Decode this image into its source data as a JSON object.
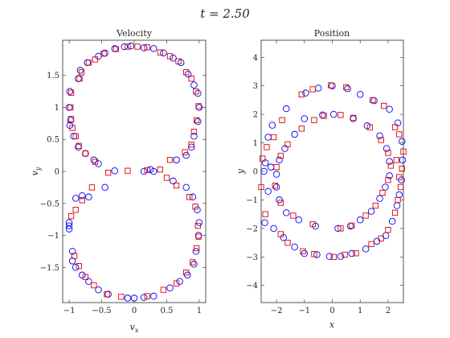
{
  "figure": {
    "title": "t = 2.50",
    "series_colors": {
      "blue": "#0000ff",
      "red": "#dd0000"
    },
    "markers": {
      "blue": "circle",
      "red": "square"
    }
  },
  "chart_data": [
    {
      "type": "scatter",
      "title": "Velocity",
      "xlabel": "v_x",
      "ylabel": "v_y",
      "xlim": [
        -1.1,
        1.1
      ],
      "ylim": [
        -2.05,
        2.05
      ],
      "xticks": [
        -1,
        -0.5,
        0,
        0.5,
        1
      ],
      "yticks": [
        -1.5,
        -1,
        -0.5,
        0,
        0.5,
        1,
        1.5
      ],
      "grid": false,
      "series": [
        {
          "color": "blue",
          "marker": "circle",
          "points": [
            [
              -1.0,
              1.0
            ],
            [
              -0.98,
              0.8
            ],
            [
              -0.99,
              1.25
            ],
            [
              -0.86,
              1.45
            ],
            [
              -0.83,
              1.58
            ],
            [
              -0.72,
              1.7
            ],
            [
              -0.55,
              1.8
            ],
            [
              -0.45,
              1.85
            ],
            [
              -0.3,
              1.92
            ],
            [
              -0.15,
              1.95
            ],
            [
              -0.05,
              1.96
            ],
            [
              0.15,
              1.93
            ],
            [
              0.3,
              1.92
            ],
            [
              0.45,
              1.85
            ],
            [
              0.6,
              1.77
            ],
            [
              0.72,
              1.7
            ],
            [
              0.83,
              1.52
            ],
            [
              0.92,
              1.35
            ],
            [
              0.98,
              1.22
            ],
            [
              1.0,
              1.0
            ],
            [
              0.98,
              0.78
            ],
            [
              0.92,
              0.55
            ],
            [
              0.88,
              0.38
            ],
            [
              0.8,
              0.25
            ],
            [
              0.65,
              0.18
            ],
            [
              0.3,
              0.0
            ],
            [
              0.25,
              0.03
            ],
            [
              0.15,
              0.0
            ],
            [
              -0.3,
              0.01
            ],
            [
              -0.55,
              0.12
            ],
            [
              -0.62,
              0.18
            ],
            [
              -0.75,
              0.28
            ],
            [
              -0.86,
              0.38
            ],
            [
              -0.93,
              0.55
            ],
            [
              -0.99,
              0.72
            ],
            [
              -1.0,
              -0.8
            ],
            [
              -1.0,
              -0.85
            ],
            [
              -1.0,
              -0.9
            ],
            [
              -0.95,
              -1.25
            ],
            [
              -0.95,
              -1.4
            ],
            [
              -0.9,
              -1.5
            ],
            [
              -0.8,
              -1.62
            ],
            [
              -0.7,
              -1.72
            ],
            [
              -0.55,
              -1.85
            ],
            [
              -0.4,
              -1.92
            ],
            [
              -0.1,
              -1.98
            ],
            [
              0.0,
              -1.98
            ],
            [
              0.15,
              -1.97
            ],
            [
              0.3,
              -1.95
            ],
            [
              0.55,
              -1.82
            ],
            [
              0.7,
              -1.72
            ],
            [
              0.82,
              -1.62
            ],
            [
              0.92,
              -1.45
            ],
            [
              0.95,
              -1.25
            ],
            [
              0.99,
              -1.0
            ],
            [
              1.0,
              -0.8
            ],
            [
              0.97,
              -0.6
            ],
            [
              0.9,
              -0.4
            ],
            [
              0.8,
              -0.25
            ],
            [
              0.6,
              -0.15
            ],
            [
              -0.45,
              -0.25
            ],
            [
              -0.7,
              -0.4
            ],
            [
              -0.8,
              -0.38
            ],
            [
              -0.9,
              -0.42
            ]
          ]
        },
        {
          "color": "red",
          "marker": "square",
          "points": [
            [
              -0.98,
              1.0
            ],
            [
              -0.97,
              1.23
            ],
            [
              -0.97,
              0.82
            ],
            [
              -0.95,
              0.68
            ],
            [
              -0.84,
              1.45
            ],
            [
              -0.81,
              1.55
            ],
            [
              -0.7,
              1.7
            ],
            [
              -0.6,
              1.75
            ],
            [
              -0.47,
              1.84
            ],
            [
              -0.28,
              1.91
            ],
            [
              -0.1,
              1.95
            ],
            [
              0.05,
              1.95
            ],
            [
              0.2,
              1.94
            ],
            [
              0.4,
              1.86
            ],
            [
              0.55,
              1.8
            ],
            [
              0.68,
              1.72
            ],
            [
              0.8,
              1.55
            ],
            [
              0.88,
              1.45
            ],
            [
              0.95,
              1.25
            ],
            [
              0.99,
              1.02
            ],
            [
              0.96,
              0.8
            ],
            [
              0.92,
              0.62
            ],
            [
              0.88,
              0.42
            ],
            [
              0.78,
              0.3
            ],
            [
              0.55,
              0.18
            ],
            [
              0.4,
              0.03
            ],
            [
              0.2,
              0.02
            ],
            [
              -0.1,
              0.01
            ],
            [
              -0.4,
              -0.02
            ],
            [
              -0.65,
              -0.25
            ],
            [
              -0.8,
              -0.45
            ],
            [
              -0.9,
              -0.6
            ],
            [
              -0.97,
              -0.7
            ],
            [
              -0.92,
              -1.32
            ],
            [
              -0.85,
              -1.48
            ],
            [
              -0.75,
              -1.65
            ],
            [
              -0.62,
              -1.78
            ],
            [
              -0.42,
              -1.92
            ],
            [
              -0.2,
              -1.96
            ],
            [
              0.2,
              -1.95
            ],
            [
              0.45,
              -1.85
            ],
            [
              0.65,
              -1.75
            ],
            [
              0.8,
              -1.58
            ],
            [
              0.9,
              -1.42
            ],
            [
              0.96,
              -1.2
            ],
            [
              0.99,
              -1.02
            ],
            [
              0.98,
              -0.85
            ],
            [
              0.94,
              -0.55
            ],
            [
              0.85,
              -0.4
            ],
            [
              0.65,
              -0.22
            ],
            [
              0.5,
              -0.1
            ],
            [
              -0.6,
              0.15
            ],
            [
              -0.75,
              0.28
            ],
            [
              -0.85,
              0.4
            ],
            [
              -0.9,
              0.55
            ]
          ]
        }
      ]
    },
    {
      "type": "scatter",
      "title": "Position",
      "xlabel": "x",
      "ylabel": "y",
      "xlim": [
        -2.55,
        2.55
      ],
      "ylim": [
        -4.6,
        4.6
      ],
      "xticks": [
        -2,
        -1,
        0,
        1,
        2
      ],
      "yticks": [
        -4,
        -3,
        -2,
        -1,
        0,
        1,
        2,
        3,
        4
      ],
      "grid": false,
      "series": [
        {
          "color": "blue",
          "marker": "circle",
          "points": [
            [
              -0.95,
              2.75
            ],
            [
              -0.5,
              2.92
            ],
            [
              0.0,
              3.0
            ],
            [
              0.55,
              2.9
            ],
            [
              1.0,
              2.7
            ],
            [
              1.5,
              2.48
            ],
            [
              2.05,
              2.18
            ],
            [
              2.35,
              1.7
            ],
            [
              2.5,
              1.05
            ],
            [
              2.52,
              0.4
            ],
            [
              2.48,
              -0.3
            ],
            [
              2.4,
              -0.82
            ],
            [
              2.32,
              -1.2
            ],
            [
              2.15,
              -1.75
            ],
            [
              1.92,
              -2.25
            ],
            [
              1.6,
              -2.45
            ],
            [
              1.2,
              -2.72
            ],
            [
              0.7,
              -2.88
            ],
            [
              0.3,
              -2.98
            ],
            [
              -0.1,
              -2.98
            ],
            [
              -0.55,
              -2.92
            ],
            [
              -1.0,
              -2.88
            ],
            [
              -1.35,
              -2.65
            ],
            [
              -1.75,
              -2.32
            ],
            [
              -2.1,
              -2.0
            ],
            [
              -2.42,
              -1.8
            ],
            [
              -2.3,
              -0.7
            ],
            [
              -2.45,
              0.0
            ],
            [
              -2.4,
              0.3
            ],
            [
              -2.3,
              1.2
            ],
            [
              -2.15,
              1.62
            ],
            [
              -1.65,
              2.2
            ],
            [
              -1.0,
              1.85
            ],
            [
              -0.35,
              1.98
            ],
            [
              0.05,
              2.0
            ],
            [
              0.75,
              1.85
            ],
            [
              1.25,
              1.6
            ],
            [
              1.7,
              1.25
            ],
            [
              1.95,
              0.8
            ],
            [
              2.05,
              0.35
            ],
            [
              2.05,
              -0.15
            ],
            [
              1.9,
              -0.55
            ],
            [
              1.7,
              -0.95
            ],
            [
              1.4,
              -1.4
            ],
            [
              1.0,
              -1.7
            ],
            [
              0.65,
              -1.92
            ],
            [
              0.2,
              -2.0
            ],
            [
              -0.6,
              -1.92
            ],
            [
              -1.2,
              -1.7
            ],
            [
              -1.65,
              -1.45
            ],
            [
              -1.9,
              -1.0
            ],
            [
              -2.0,
              -0.55
            ],
            [
              -2.0,
              -0.1
            ],
            [
              -1.9,
              0.4
            ],
            [
              -1.7,
              0.8
            ],
            [
              -1.35,
              1.3
            ],
            [
              -2.2,
              0.15
            ]
          ]
        },
        {
          "color": "red",
          "marker": "square",
          "points": [
            [
              -1.1,
              2.7
            ],
            [
              -0.7,
              2.88
            ],
            [
              -0.05,
              3.02
            ],
            [
              0.5,
              2.95
            ],
            [
              1.45,
              2.5
            ],
            [
              1.85,
              2.3
            ],
            [
              2.25,
              1.55
            ],
            [
              2.4,
              1.3
            ],
            [
              2.55,
              0.7
            ],
            [
              2.5,
              0.1
            ],
            [
              2.45,
              -0.55
            ],
            [
              2.35,
              -1.0
            ],
            [
              2.25,
              -1.45
            ],
            [
              2.0,
              -2.05
            ],
            [
              1.75,
              -2.35
            ],
            [
              1.4,
              -2.55
            ],
            [
              0.85,
              -2.87
            ],
            [
              0.45,
              -2.92
            ],
            [
              0.05,
              -3.0
            ],
            [
              -0.65,
              -2.9
            ],
            [
              -1.05,
              -2.8
            ],
            [
              -1.6,
              -2.5
            ],
            [
              -1.85,
              -2.2
            ],
            [
              -2.4,
              -1.5
            ],
            [
              -2.55,
              -0.55
            ],
            [
              -2.5,
              0.45
            ],
            [
              -2.35,
              0.85
            ],
            [
              -2.1,
              1.2
            ],
            [
              -1.8,
              1.8
            ],
            [
              -0.3,
              1.95
            ],
            [
              0.3,
              1.98
            ],
            [
              0.75,
              1.88
            ],
            [
              1.35,
              1.55
            ],
            [
              1.75,
              1.1
            ],
            [
              2.0,
              0.65
            ],
            [
              2.1,
              0.2
            ],
            [
              2.0,
              -0.3
            ],
            [
              1.8,
              -0.75
            ],
            [
              1.55,
              -1.2
            ],
            [
              1.2,
              -1.55
            ],
            [
              0.7,
              -1.9
            ],
            [
              0.3,
              -2.0
            ],
            [
              -0.7,
              -1.85
            ],
            [
              -1.4,
              -1.55
            ],
            [
              -1.85,
              -1.1
            ],
            [
              -2.05,
              -0.5
            ],
            [
              -2.0,
              0.15
            ],
            [
              -1.85,
              0.55
            ],
            [
              -1.6,
              0.95
            ],
            [
              -1.1,
              1.5
            ],
            [
              -0.65,
              1.8
            ],
            [
              2.4,
              -0.2
            ],
            [
              2.3,
              0.4
            ]
          ]
        }
      ]
    }
  ]
}
